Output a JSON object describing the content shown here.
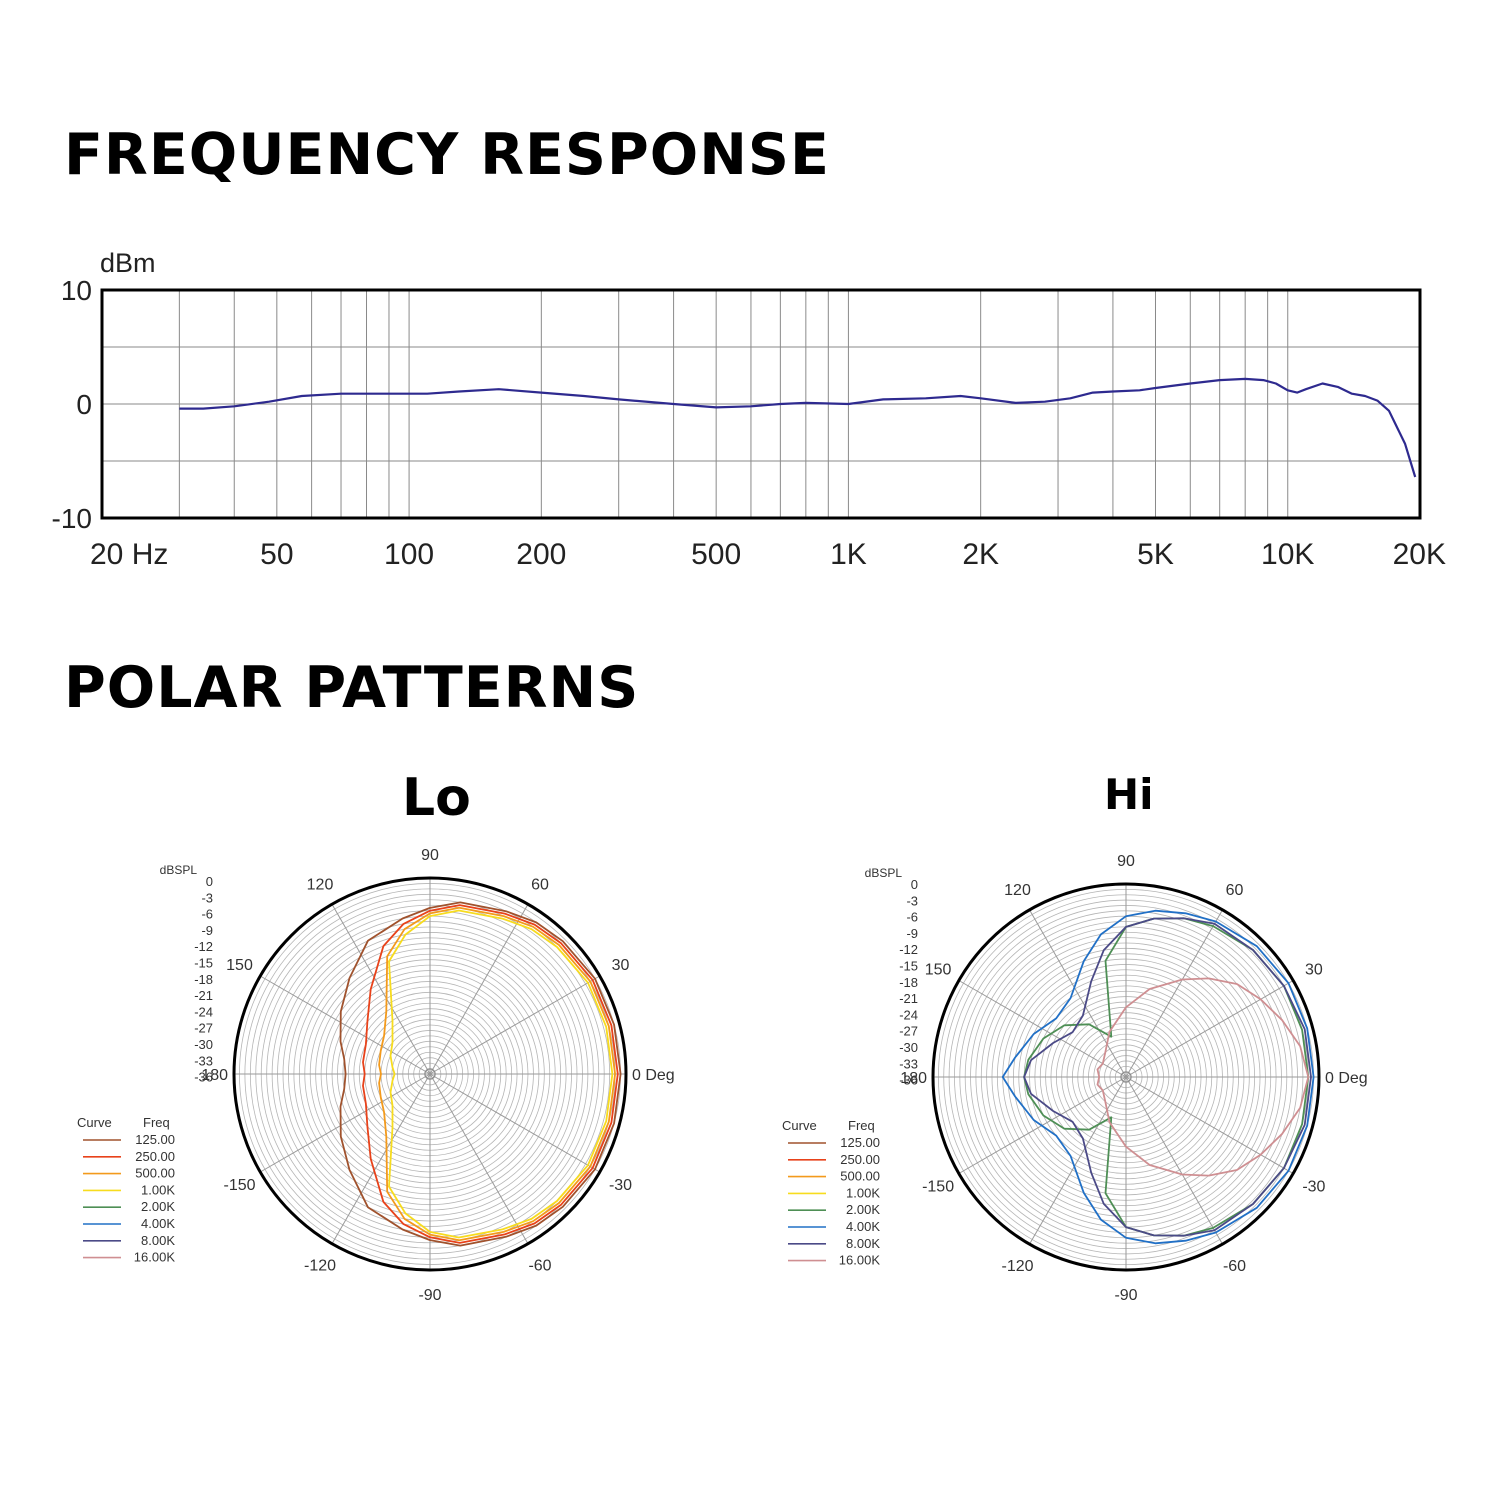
{
  "headings": {
    "frequency": "FREQUENCY RESPONSE",
    "polar": "POLAR PATTERNS"
  },
  "chart_data": [
    {
      "type": "line",
      "ylabel": "dBm",
      "xscale": "log",
      "xlim": [
        20,
        20000
      ],
      "ylim": [
        -10,
        10
      ],
      "grid": true,
      "xticks": [
        {
          "value": 20,
          "label": "20 Hz"
        },
        {
          "value": 50,
          "label": "50"
        },
        {
          "value": 100,
          "label": "100"
        },
        {
          "value": 200,
          "label": "200"
        },
        {
          "value": 500,
          "label": "500"
        },
        {
          "value": 1000,
          "label": "1K"
        },
        {
          "value": 2000,
          "label": "2K"
        },
        {
          "value": 5000,
          "label": "5K"
        },
        {
          "value": 10000,
          "label": "10K"
        },
        {
          "value": 20000,
          "label": "20K"
        }
      ],
      "yticks": [
        {
          "value": 10,
          "label": "10"
        },
        {
          "value": 0,
          "label": "0"
        },
        {
          "value": -10,
          "label": "-10"
        }
      ],
      "series": [
        {
          "color": "#2e2a8f",
          "x": [
            30,
            34,
            40,
            48,
            57,
            70,
            90,
            110,
            130,
            160,
            200,
            250,
            300,
            400,
            500,
            600,
            700,
            800,
            1000,
            1200,
            1500,
            1800,
            2000,
            2400,
            2800,
            3200,
            3600,
            4000,
            4600,
            5000,
            6000,
            7000,
            8000,
            8800,
            9400,
            10000,
            10500,
            11000,
            12000,
            13000,
            14000,
            15000,
            16000,
            17000,
            18500,
            19500
          ],
          "y": [
            -0.4,
            -0.4,
            -0.2,
            0.2,
            0.7,
            0.9,
            0.9,
            0.9,
            1.1,
            1.3,
            1.0,
            0.7,
            0.4,
            0.0,
            -0.3,
            -0.2,
            0.0,
            0.1,
            0.0,
            0.4,
            0.5,
            0.7,
            0.5,
            0.1,
            0.2,
            0.5,
            1.0,
            1.1,
            1.2,
            1.4,
            1.8,
            2.1,
            2.2,
            2.1,
            1.8,
            1.2,
            1.0,
            1.3,
            1.8,
            1.5,
            0.9,
            0.7,
            0.3,
            -0.6,
            -3.5,
            -6.4
          ]
        }
      ]
    },
    {
      "type": "polar",
      "title": "Lo",
      "rlabel": "dBSPL",
      "rticks": [
        "0",
        "-3",
        "-6",
        "-9",
        "-12",
        "-15",
        "-18",
        "-21",
        "-24",
        "-27",
        "-30",
        "-33",
        "-36"
      ],
      "angle_labels": [
        {
          "angle": 0,
          "label": "0 Deg"
        },
        {
          "angle": 30,
          "label": "30"
        },
        {
          "angle": 60,
          "label": "60"
        },
        {
          "angle": 90,
          "label": "90"
        },
        {
          "angle": 120,
          "label": "120"
        },
        {
          "angle": 150,
          "label": "150"
        },
        {
          "angle": 180,
          "label": "180"
        },
        {
          "angle": -150,
          "label": "-150"
        },
        {
          "angle": -120,
          "label": "-120"
        },
        {
          "angle": -90,
          "label": "-90"
        },
        {
          "angle": -60,
          "label": "-60"
        },
        {
          "angle": -30,
          "label": "-30"
        }
      ],
      "legend": {
        "header_curve": "Curve",
        "header_freq": "Freq",
        "items": [
          {
            "freq": "125.00",
            "color": "#a0522d"
          },
          {
            "freq": "250.00",
            "color": "#e8421a"
          },
          {
            "freq": "500.00",
            "color": "#f39a1c"
          },
          {
            "freq": "1.00K",
            "color": "#f7dc1e"
          },
          {
            "freq": "2.00K",
            "color": "#4e8f55"
          },
          {
            "freq": "4.00K",
            "color": "#2170c6"
          },
          {
            "freq": "8.00K",
            "color": "#4b4a87"
          },
          {
            "freq": "16.00K",
            "color": "#cf8f92"
          }
        ]
      },
      "series": [
        {
          "freq": "125.00",
          "color": "#a0522d",
          "angles": [
            0,
            15,
            30,
            45,
            55,
            65,
            80,
            90,
            100,
            115,
            130,
            145,
            160,
            170,
            180
          ],
          "values": [
            -1,
            -1,
            -1,
            -1.5,
            -2,
            -3,
            -4,
            -5.5,
            -7,
            -9,
            -13,
            -16,
            -18.5,
            -20,
            -20.5
          ]
        },
        {
          "freq": "250.00",
          "color": "#e8421a",
          "angles": [
            0,
            15,
            30,
            45,
            55,
            65,
            80,
            90,
            100,
            110,
            125,
            140,
            155,
            170,
            180
          ],
          "values": [
            -1.5,
            -1.5,
            -1.5,
            -2,
            -2.5,
            -3.5,
            -4.5,
            -6,
            -8,
            -11,
            -17,
            -21,
            -23,
            -23.5,
            -24
          ]
        },
        {
          "freq": "500.00",
          "color": "#f39a1c",
          "angles": [
            0,
            15,
            30,
            45,
            55,
            65,
            80,
            90,
            100,
            110,
            125,
            140,
            155,
            170,
            180
          ],
          "values": [
            -2,
            -2,
            -2,
            -2.5,
            -3,
            -4,
            -5,
            -6.5,
            -9,
            -13,
            -22,
            -25,
            -26,
            -26.5,
            -27
          ]
        },
        {
          "freq": "1.00K",
          "color": "#f7dc1e",
          "angles": [
            0,
            15,
            30,
            45,
            55,
            65,
            80,
            90,
            100,
            110,
            125,
            140,
            155,
            170,
            180
          ],
          "values": [
            -2.5,
            -2.5,
            -2.5,
            -3,
            -3.5,
            -4.5,
            -5.5,
            -7,
            -10,
            -14,
            -24,
            -27,
            -28,
            -29,
            -29.5
          ]
        }
      ]
    },
    {
      "type": "polar",
      "title": "Hi",
      "rlabel": "dBSPL",
      "rticks": [
        "0",
        "-3",
        "-6",
        "-9",
        "-12",
        "-15",
        "-18",
        "-21",
        "-24",
        "-27",
        "-30",
        "-33",
        "-36"
      ],
      "angle_labels": [
        {
          "angle": 0,
          "label": "0 Deg"
        },
        {
          "angle": 30,
          "label": "30"
        },
        {
          "angle": 60,
          "label": "60"
        },
        {
          "angle": 90,
          "label": "90"
        },
        {
          "angle": 120,
          "label": "120"
        },
        {
          "angle": 150,
          "label": "150"
        },
        {
          "angle": 180,
          "label": "180"
        },
        {
          "angle": -150,
          "label": "-150"
        },
        {
          "angle": -120,
          "label": "-120"
        },
        {
          "angle": -90,
          "label": "-90"
        },
        {
          "angle": -60,
          "label": "-60"
        },
        {
          "angle": -30,
          "label": "-30"
        }
      ],
      "legend": {
        "header_curve": "Curve",
        "header_freq": "Freq",
        "items": [
          {
            "freq": "125.00",
            "color": "#a0522d"
          },
          {
            "freq": "250.00",
            "color": "#e8421a"
          },
          {
            "freq": "500.00",
            "color": "#f39a1c"
          },
          {
            "freq": "1.00K",
            "color": "#f7dc1e"
          },
          {
            "freq": "2.00K",
            "color": "#4e8f55"
          },
          {
            "freq": "4.00K",
            "color": "#2170c6"
          },
          {
            "freq": "8.00K",
            "color": "#4b4a87"
          },
          {
            "freq": "16.00K",
            "color": "#cf8f92"
          }
        ]
      },
      "series": [
        {
          "freq": "2.00K",
          "color": "#4e8f55",
          "angles": [
            0,
            15,
            30,
            45,
            60,
            70,
            80,
            90,
            100,
            110,
            125,
            140,
            155,
            170,
            180
          ],
          "values": [
            -2,
            -2,
            -2,
            -2.5,
            -3.5,
            -4.5,
            -6,
            -8,
            -14,
            -28,
            -24,
            -21,
            -19,
            -17.5,
            -17
          ]
        },
        {
          "freq": "4.00K",
          "color": "#2170c6",
          "angles": [
            0,
            15,
            30,
            45,
            60,
            70,
            80,
            90,
            100,
            110,
            125,
            140,
            155,
            170,
            180
          ],
          "values": [
            -1,
            -1,
            -1,
            -1.5,
            -2.5,
            -3.5,
            -4.5,
            -6,
            -9,
            -13,
            -18,
            -19,
            -17,
            -15,
            -13
          ]
        },
        {
          "freq": "8.00K",
          "color": "#4b4a87",
          "angles": [
            0,
            15,
            30,
            45,
            60,
            70,
            80,
            90,
            100,
            110,
            125,
            140,
            155,
            170,
            180
          ],
          "values": [
            -1.5,
            -1.5,
            -2,
            -2.5,
            -3,
            -4.5,
            -6,
            -8,
            -12,
            -17,
            -22,
            -23,
            -21,
            -18,
            -17
          ]
        },
        {
          "freq": "16.00K",
          "color": "#cf8f92",
          "angles": [
            0,
            10,
            20,
            30,
            40,
            50,
            60,
            75,
            90,
            110,
            130,
            150,
            165,
            180
          ],
          "values": [
            -2,
            -3,
            -5,
            -7,
            -9,
            -12,
            -15,
            -19,
            -23,
            -27,
            -30,
            -31,
            -30.5,
            -31
          ]
        }
      ]
    }
  ]
}
